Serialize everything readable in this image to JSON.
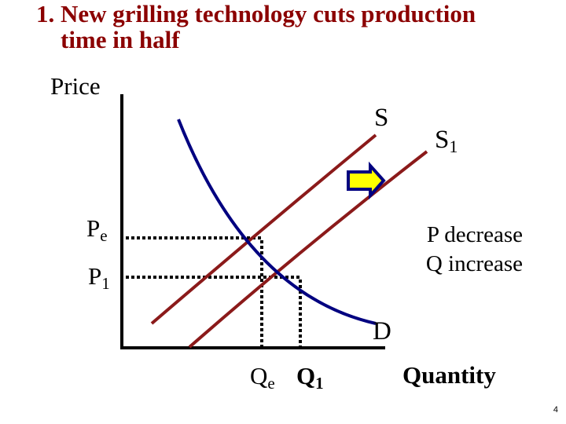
{
  "slide": {
    "title_number": "1.",
    "title_line1": "New grilling technology cuts production",
    "title_line2": "time in half",
    "slide_number": "4"
  },
  "axes": {
    "y_label": "Price",
    "x_label": "Quantity"
  },
  "curves": {
    "supply_label": "S",
    "supply_new_label": "S",
    "supply_new_subscript": "1",
    "demand_label": "D"
  },
  "price_labels": {
    "pe_main": "P",
    "pe_sub": "e",
    "p1_main": "P",
    "p1_sub": "1"
  },
  "quantity_labels": {
    "qe_main": "Q",
    "qe_sub": "e",
    "q1_main": "Q",
    "q1_sub": "1"
  },
  "annotation": {
    "line1": "P decrease",
    "line2": "Q increase"
  },
  "colors": {
    "title": "#8b0000",
    "supply": "#8b1a1a",
    "demand": "#000080",
    "arrow_fill": "#ffff00",
    "arrow_stroke": "#000080"
  },
  "icons": {
    "shift_arrow": "right-arrow-icon"
  }
}
